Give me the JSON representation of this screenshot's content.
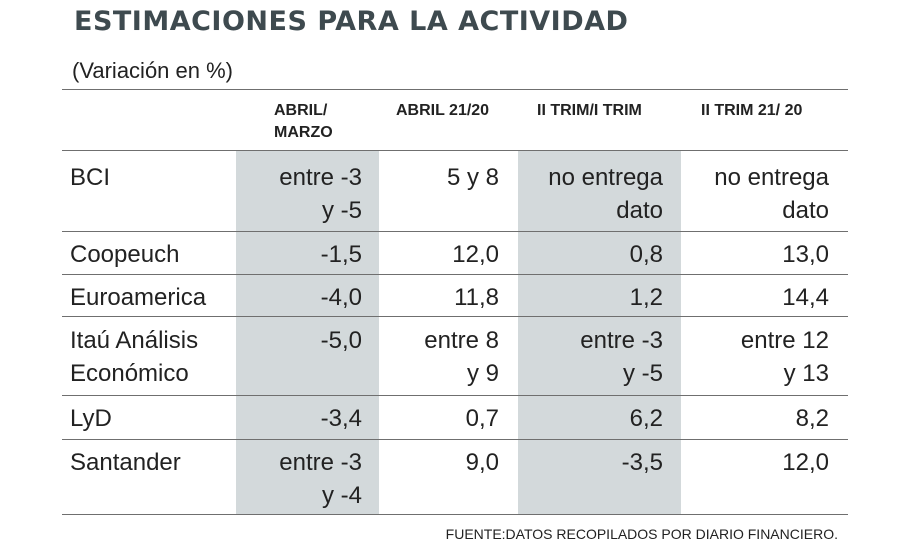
{
  "title": "ESTIMACIONES PARA LA ACTIVIDAD",
  "subtitle": "(Variación en %)",
  "headers": [
    "ABRIL/\nMARZO",
    "ABRIL 21/20",
    "II TRIM/I TRIM",
    "II TRIM 21/ 20"
  ],
  "rows": [
    {
      "name": "BCI",
      "values": [
        "entre -3\ny -5",
        "5 y 8",
        "no entrega\ndato",
        "no entrega\ndato"
      ]
    },
    {
      "name": "Coopeuch",
      "values": [
        "-1,5",
        "12,0",
        "0,8",
        "13,0"
      ]
    },
    {
      "name": "Euroamerica",
      "values": [
        "-4,0",
        "11,8",
        "1,2",
        "14,4"
      ]
    },
    {
      "name": "Itaú Análisis\nEconómico",
      "values": [
        "-5,0",
        "entre 8\ny 9",
        "entre -3\ny -5",
        "entre 12\ny 13"
      ]
    },
    {
      "name": "LyD",
      "values": [
        "-3,4",
        "0,7",
        "6,2",
        "8,2"
      ]
    },
    {
      "name": "Santander",
      "values": [
        "entre -3\ny -4",
        "9,0",
        "-3,5",
        "12,0"
      ]
    }
  ],
  "source": "FUENTE:DATOS RECOPILADOS POR DIARIO FINANCIERO."
}
